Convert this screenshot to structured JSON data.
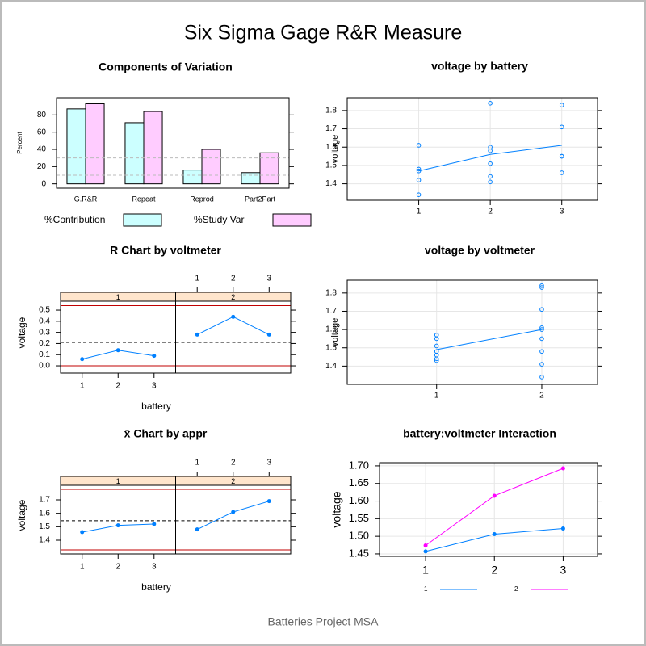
{
  "title": "Six Sigma Gage R&R Measure",
  "footer": "Batteries Project MSA",
  "chart_data": [
    {
      "type": "bar",
      "title": "Components of Variation",
      "y_label": "Percent",
      "categories": [
        "G.R&R",
        "Repeat",
        "Reprod",
        "Part2Part"
      ],
      "series": [
        {
          "name": "%Contribution",
          "color": "#ccffff",
          "values": [
            87,
            71,
            16,
            13
          ]
        },
        {
          "name": "%Study Var",
          "color": "#ffccff",
          "values": [
            93,
            84,
            40,
            36
          ]
        }
      ],
      "ylim": [
        -5,
        100
      ],
      "yticks": [
        0,
        20,
        40,
        60,
        80
      ],
      "reference_lines": [
        10,
        30
      ],
      "legend": "bottom"
    },
    {
      "type": "scatter",
      "title": "voltage by battery",
      "y_label": "voltage",
      "color": "#0080ff",
      "x": [
        1,
        1,
        1,
        1,
        1,
        2,
        2,
        2,
        2,
        2,
        2,
        3,
        3,
        3,
        3,
        3
      ],
      "values": [
        1.61,
        1.48,
        1.47,
        1.42,
        1.34,
        1.84,
        1.6,
        1.58,
        1.51,
        1.44,
        1.41,
        1.83,
        1.71,
        1.55,
        1.55,
        1.46
      ],
      "mean_x": [
        1,
        2,
        3
      ],
      "mean_values": [
        1.47,
        1.56,
        1.61
      ],
      "xlim": [
        0,
        3.5
      ],
      "xticks": [
        1,
        2,
        3
      ],
      "ylim": [
        1.31,
        1.87
      ],
      "yticks": [
        1.4,
        1.5,
        1.6,
        1.7,
        1.8
      ],
      "grid": true
    },
    {
      "type": "scatter",
      "title": "voltage by voltmeter",
      "y_label": "voltage",
      "color": "#0080ff",
      "x": [
        1,
        1,
        1,
        1,
        1,
        1,
        1,
        2,
        2,
        2,
        2,
        2,
        2,
        2,
        2,
        2
      ],
      "values": [
        1.57,
        1.55,
        1.51,
        1.48,
        1.46,
        1.44,
        1.43,
        1.84,
        1.83,
        1.71,
        1.61,
        1.6,
        1.55,
        1.48,
        1.41,
        1.34
      ],
      "mean_x": [
        1,
        2
      ],
      "mean_values": [
        1.49,
        1.6
      ],
      "xlim": [
        0.15,
        2.53
      ],
      "xticks": [
        1,
        2
      ],
      "ylim": [
        1.3,
        1.87
      ],
      "yticks": [
        1.4,
        1.5,
        1.6,
        1.7,
        1.8
      ],
      "grid": true
    },
    {
      "type": "control",
      "title": "R Chart by voltmeter",
      "y_label": "voltage",
      "x_label": "battery",
      "color": "#0080ff",
      "panels": [
        "1",
        "2"
      ],
      "x": [
        1,
        2,
        3
      ],
      "panel_values": [
        [
          0.06,
          0.14,
          0.09
        ],
        [
          0.28,
          0.44,
          0.28
        ]
      ],
      "center_line": 0.21,
      "limits": [
        0,
        0.54
      ],
      "xlim": [
        0.4,
        3.6
      ],
      "xticks": [
        1,
        2,
        3
      ],
      "ylim": [
        -0.065,
        0.58
      ],
      "yticks": [
        {
          "value": 0,
          "label": "0.0"
        },
        0.1,
        0.2,
        0.3,
        0.4,
        0.5
      ]
    },
    {
      "type": "control",
      "title": "x̄ Chart by appr",
      "y_label": "voltage",
      "x_label": "battery",
      "color": "#0080ff",
      "panels": [
        "1",
        "2"
      ],
      "x": [
        1,
        2,
        3
      ],
      "panel_values": [
        [
          1.46,
          1.51,
          1.52
        ],
        [
          1.48,
          1.61,
          1.69
        ]
      ],
      "center_line": 1.545,
      "limits": [
        1.328,
        1.778
      ],
      "xlim": [
        0.4,
        3.6
      ],
      "xticks": [
        1,
        2,
        3
      ],
      "ylim": [
        1.298,
        1.808
      ],
      "yticks": [
        1.4,
        1.5,
        1.6,
        1.7
      ]
    },
    {
      "type": "line",
      "title": "battery:voltmeter Interaction",
      "y_label": "voltage",
      "x": [
        1,
        2,
        3
      ],
      "series": [
        {
          "name": "1",
          "color": "#0080ff",
          "values": [
            1.457,
            1.506,
            1.522
          ]
        },
        {
          "name": "2",
          "color": "#ff00ff",
          "values": [
            1.474,
            1.615,
            1.693
          ]
        }
      ],
      "xlim": [
        0.33,
        3.5
      ],
      "xticks": [
        1,
        2,
        3
      ],
      "ylim": [
        1.443,
        1.709
      ],
      "yticks": [
        1.45,
        {
          "value": 1.5,
          "label": "1.50"
        },
        1.55,
        {
          "value": 1.6,
          "label": "1.60"
        },
        1.65,
        {
          "value": 1.7,
          "label": "1.70"
        }
      ],
      "grid": true,
      "legend": "bottom"
    }
  ]
}
